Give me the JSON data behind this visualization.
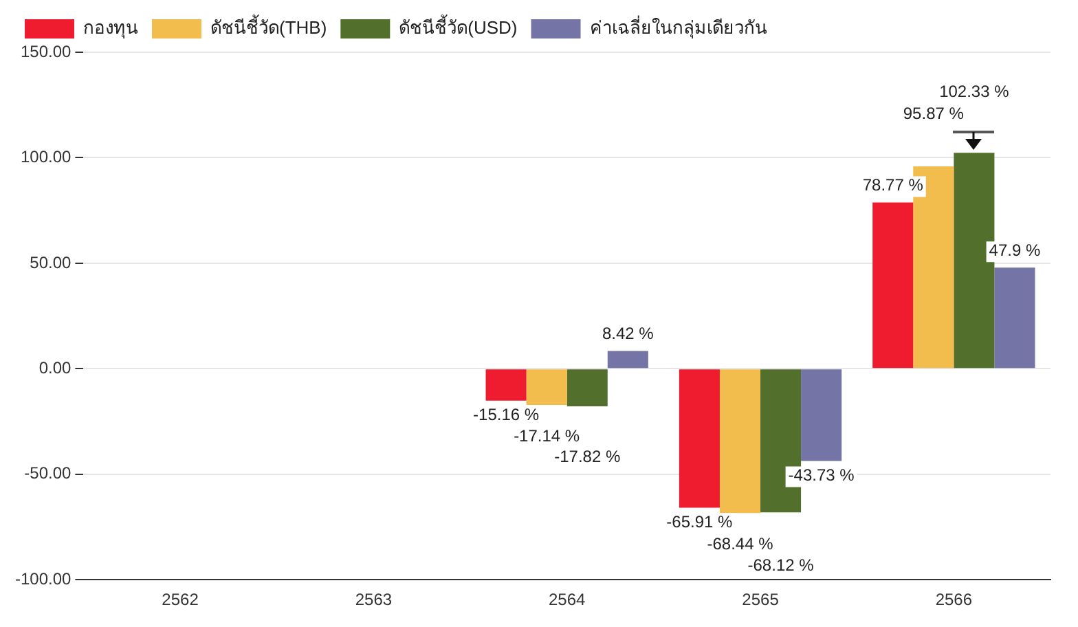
{
  "chart_data": {
    "type": "bar",
    "categories": [
      "2562",
      "2563",
      "2564",
      "2565",
      "2566"
    ],
    "series": [
      {
        "name": "กองทุน",
        "color": "#ee1c2e",
        "values": [
          null,
          null,
          -15.16,
          -65.91,
          78.77
        ],
        "value_labels": [
          null,
          null,
          "-15.16 %",
          "-65.91 %",
          "78.77 %"
        ]
      },
      {
        "name": "ดัชนีชี้วัด(THB)",
        "color": "#f3bd4e",
        "values": [
          null,
          null,
          -17.14,
          -68.44,
          95.87
        ],
        "value_labels": [
          null,
          null,
          "-17.14 %",
          "-68.44 %",
          "95.87 %"
        ]
      },
      {
        "name": "ดัชนีชี้วัด(USD)",
        "color": "#52702c",
        "values": [
          null,
          null,
          -17.82,
          -68.12,
          102.33
        ],
        "value_labels": [
          null,
          null,
          "-17.82 %",
          "-68.12 %",
          "102.33 %"
        ]
      },
      {
        "name": "ค่าเฉลี่ยในกลุ่มเดียวกัน",
        "color": "#7474a6",
        "values": [
          null,
          null,
          8.42,
          -43.73,
          47.9
        ],
        "value_labels": [
          null,
          null,
          "8.42 %",
          "-43.73 %",
          "47.9 %"
        ]
      }
    ],
    "ylim": [
      -100,
      150
    ],
    "yticks": [
      {
        "value": -100,
        "label": "-100.00"
      },
      {
        "value": -50,
        "label": "-50.00"
      },
      {
        "value": 0,
        "label": "0.00"
      },
      {
        "value": 50,
        "label": "50.00"
      },
      {
        "value": 100,
        "label": "100.00"
      },
      {
        "value": 150,
        "label": "150.00"
      }
    ],
    "grid": "y",
    "legend": "top left"
  }
}
